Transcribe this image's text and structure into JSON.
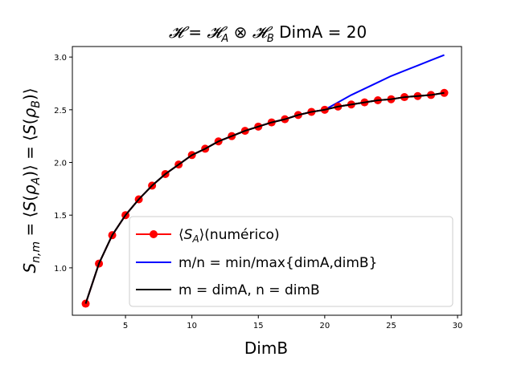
{
  "chart_data": {
    "type": "line",
    "title": "𝓗 = 𝓗_A ⊗ 𝓗_B  DimA = 20",
    "xlabel": "DimB",
    "ylabel": "S_{n,m} = ⟨S(ρ_A)⟩ = ⟨S(ρ_B)⟩",
    "xlim": [
      1.0,
      30.3
    ],
    "ylim": [
      0.55,
      3.1
    ],
    "xticks": [
      5,
      10,
      15,
      20,
      25,
      30
    ],
    "yticks": [
      1.0,
      1.5,
      2.0,
      2.5,
      3.0
    ],
    "xtick_labels": [
      "5",
      "10",
      "15",
      "20",
      "25",
      "30"
    ],
    "ytick_labels": [
      "1.0",
      "1.5",
      "2.0",
      "2.5",
      "3.0"
    ],
    "grid": false,
    "legend_position": "lower-right",
    "series": [
      {
        "name": "⟨S_A⟩(numérico)",
        "color": "#ff0000",
        "marker": "circle",
        "x": [
          2,
          3,
          4,
          5,
          6,
          7,
          8,
          9,
          10,
          11,
          12,
          13,
          14,
          15,
          16,
          17,
          18,
          19,
          20,
          21,
          22,
          23,
          24,
          25,
          26,
          27,
          28,
          29
        ],
        "y": [
          0.66,
          1.04,
          1.31,
          1.5,
          1.65,
          1.78,
          1.89,
          1.98,
          2.07,
          2.13,
          2.2,
          2.25,
          2.3,
          2.34,
          2.38,
          2.41,
          2.45,
          2.48,
          2.5,
          2.53,
          2.55,
          2.57,
          2.59,
          2.6,
          2.62,
          2.63,
          2.64,
          2.66
        ]
      },
      {
        "name": "m/n = min/max{dimA,dimB}",
        "color": "#0000ff",
        "marker": "none",
        "x": [
          2,
          3,
          4,
          5,
          6,
          7,
          8,
          9,
          10,
          11,
          12,
          13,
          14,
          15,
          16,
          17,
          18,
          19,
          20,
          21,
          22,
          23,
          24,
          25,
          26,
          27,
          28,
          29
        ],
        "y": [
          0.66,
          1.04,
          1.31,
          1.5,
          1.65,
          1.78,
          1.89,
          1.98,
          2.07,
          2.13,
          2.2,
          2.25,
          2.3,
          2.34,
          2.38,
          2.41,
          2.45,
          2.48,
          2.5,
          2.57,
          2.64,
          2.7,
          2.76,
          2.82,
          2.87,
          2.92,
          2.97,
          3.02
        ]
      },
      {
        "name": "m = dimA, n = dimB",
        "color": "#000000",
        "marker": "none",
        "x": [
          2,
          3,
          4,
          5,
          6,
          7,
          8,
          9,
          10,
          11,
          12,
          13,
          14,
          15,
          16,
          17,
          18,
          19,
          20,
          21,
          22,
          23,
          24,
          25,
          26,
          27,
          28,
          29
        ],
        "y": [
          0.66,
          1.04,
          1.31,
          1.5,
          1.65,
          1.78,
          1.89,
          1.98,
          2.07,
          2.13,
          2.2,
          2.25,
          2.3,
          2.34,
          2.38,
          2.41,
          2.45,
          2.48,
          2.5,
          2.53,
          2.55,
          2.57,
          2.59,
          2.6,
          2.62,
          2.63,
          2.64,
          2.66
        ]
      }
    ]
  }
}
